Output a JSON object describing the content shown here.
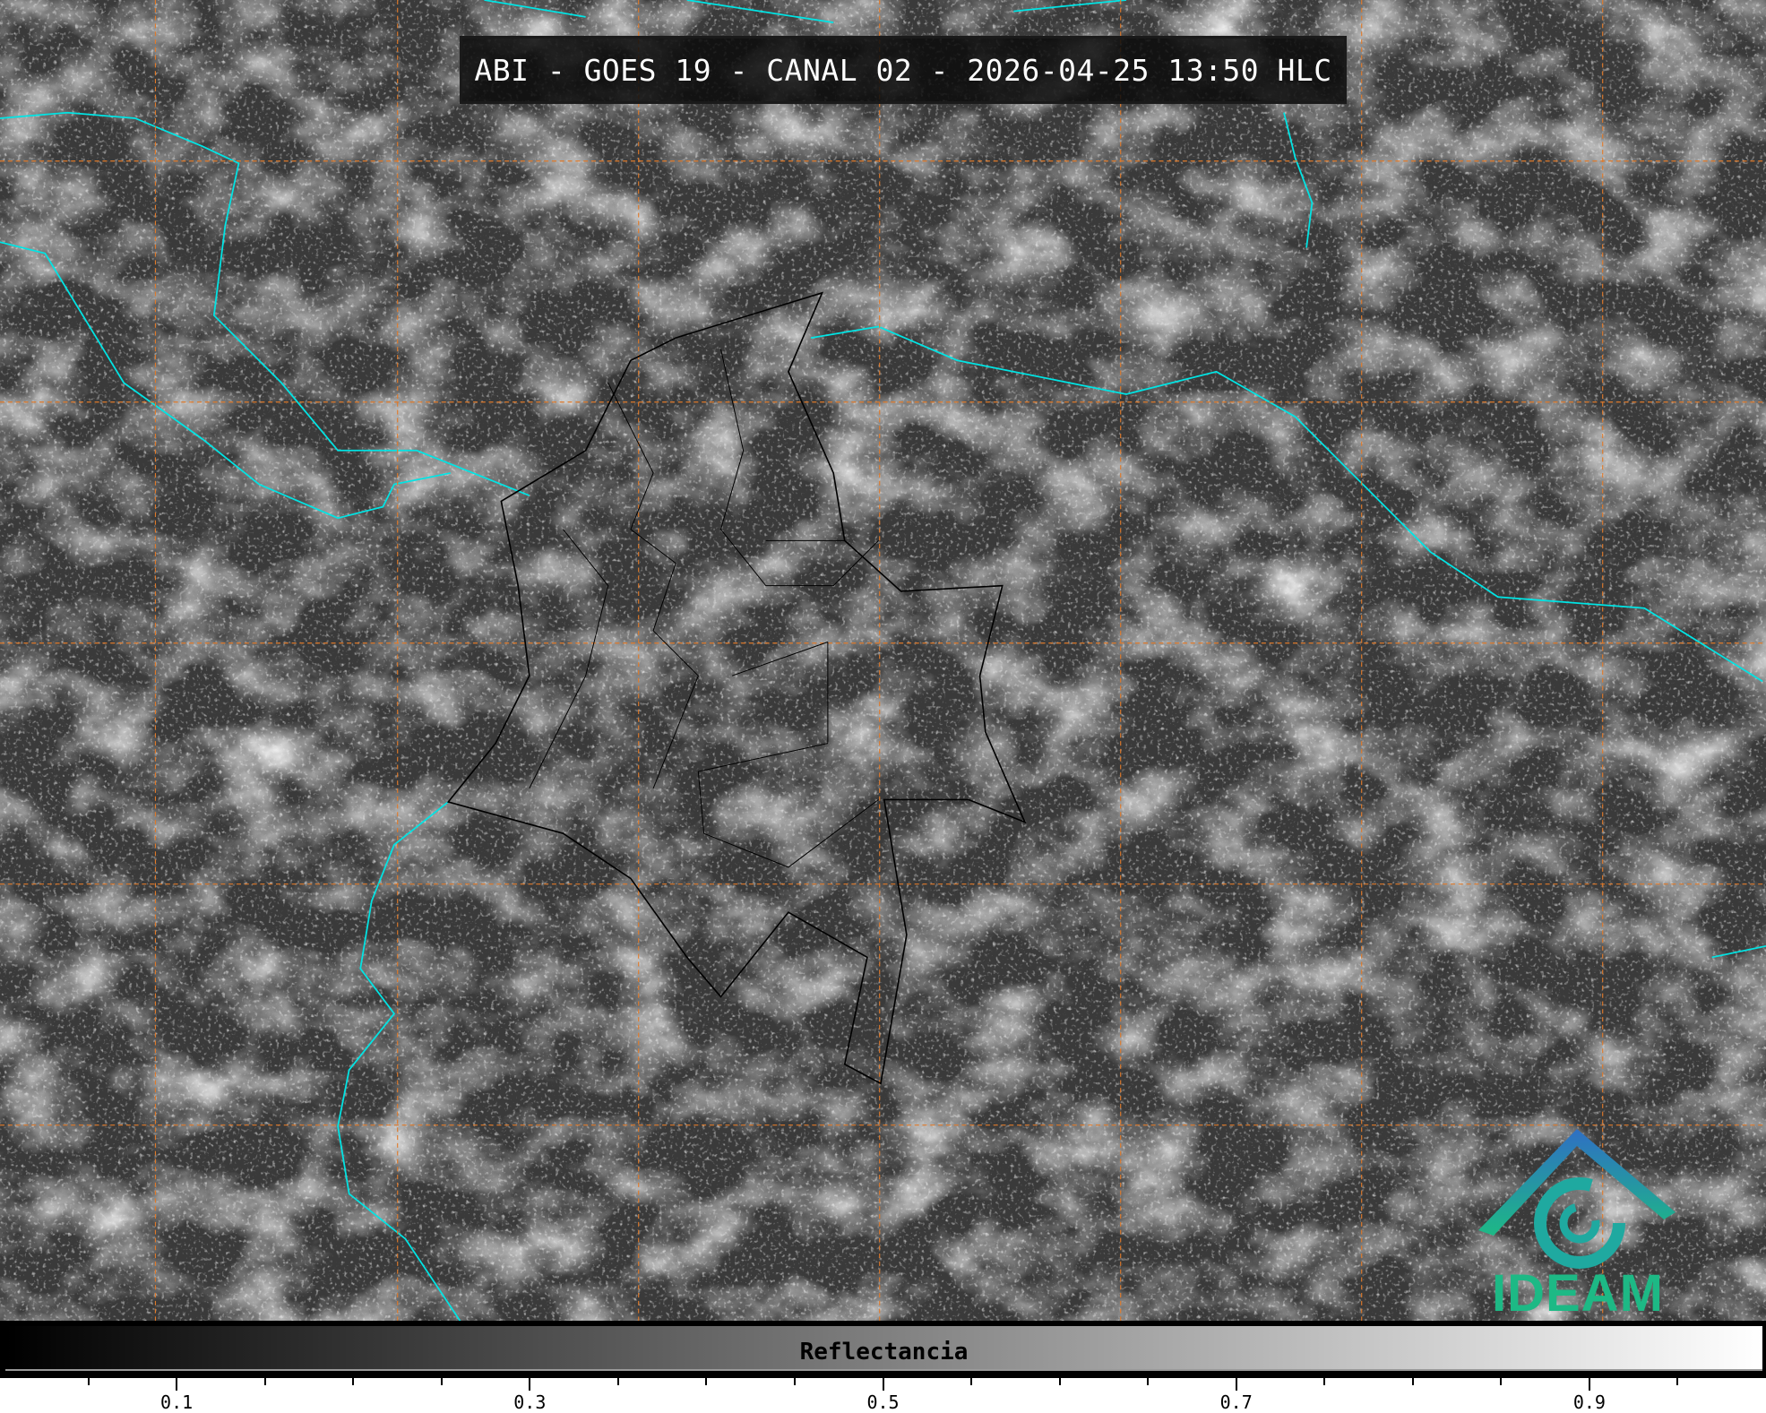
{
  "title": "ABI - GOES 19 - CANAL 02 - 2026-04-25 13:50 HLC",
  "colorbar": {
    "label": "Reflectancia",
    "range": [
      0,
      1
    ],
    "colormap": "grayscale",
    "major_ticks": [
      "0.1",
      "0.3",
      "0.5",
      "0.7",
      "0.9"
    ],
    "major_values": [
      0.1,
      0.3,
      0.5,
      0.7,
      0.9
    ],
    "minor_values": [
      0.05,
      0.15,
      0.2,
      0.25,
      0.35,
      0.4,
      0.45,
      0.55,
      0.6,
      0.65,
      0.75,
      0.8,
      0.85,
      0.95
    ]
  },
  "logo": {
    "text": "IDEAM"
  },
  "colors": {
    "coastline": "#00e5e5",
    "gridline": "#e07a2a",
    "borders": "#000000",
    "logo_teal": "#1db985",
    "logo_blue": "#2f6fc4"
  }
}
